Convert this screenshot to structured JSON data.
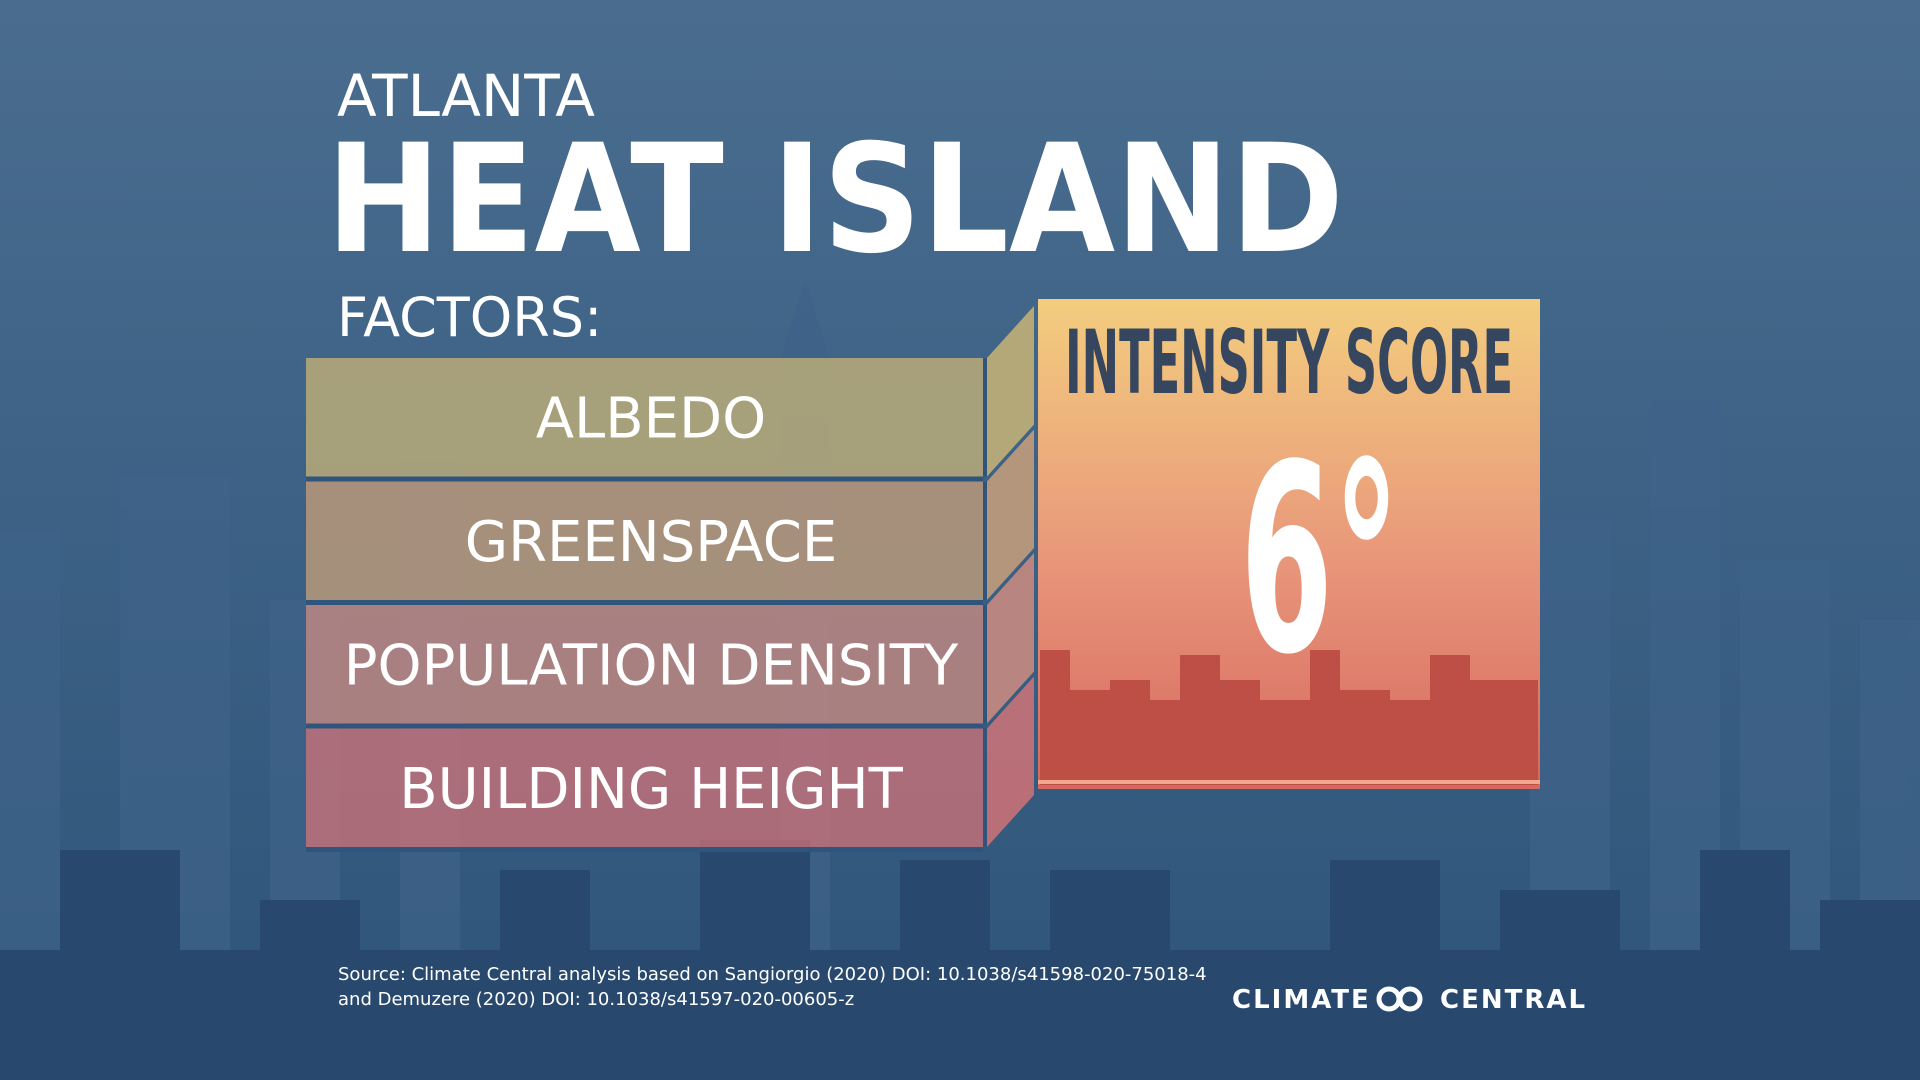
{
  "header": {
    "city": "ATLANTA",
    "title": "HEAT ISLAND",
    "factors_label": "FACTORS:"
  },
  "factors": [
    "ALBEDO",
    "GREENSPACE",
    "POPULATION DENSITY",
    "BUILDING HEIGHT"
  ],
  "score": {
    "label": "INTENSITY SCORE",
    "value": "6°"
  },
  "source": [
    "Source: Climate Central  analysis based on Sangiorgio (2020) DOI: 10.1038/s41598-020-75018-4",
    "and Demuzere (2020)  DOI: 10.1038/s41597-020-00605-z"
  ],
  "logo": {
    "left": "CLIMATE",
    "right": "CENTRAL"
  }
}
